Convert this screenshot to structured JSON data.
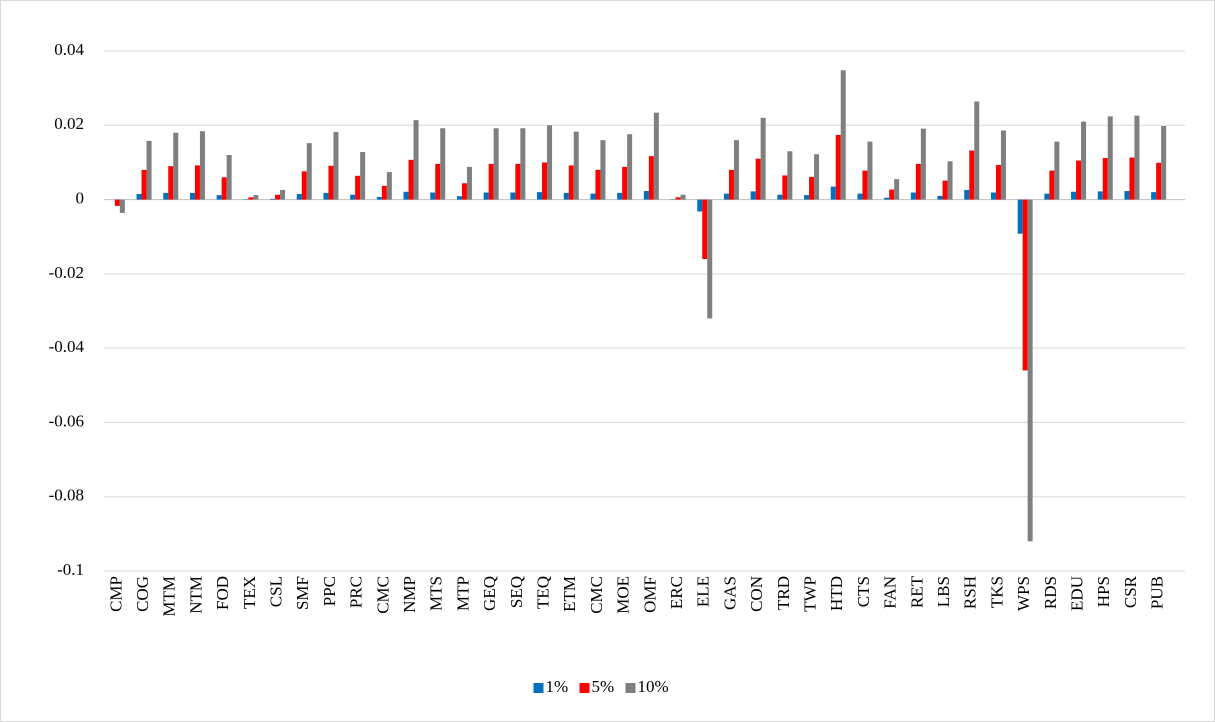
{
  "chart_data": {
    "type": "bar",
    "categories": [
      "CMP",
      "COG",
      "MTM",
      "NTM",
      "FOD",
      "TEX",
      "CSL",
      "SMF",
      "PPC",
      "PRC",
      "CMC",
      "NMP",
      "MTS",
      "MTP",
      "GEQ",
      "SEQ",
      "TEQ",
      "ETM",
      "CMC",
      "MOE",
      "OMF",
      "ERC",
      "ELE",
      "GAS",
      "CON",
      "TRD",
      "TWP",
      "HTD",
      "CTS",
      "FAN",
      "RET",
      "LBS",
      "RSH",
      "TKS",
      "WPS",
      "RDS",
      "EDU",
      "HPS",
      "CSR",
      "PUB"
    ],
    "series": [
      {
        "name": "1%",
        "color": "#0070c0",
        "values": [
          0,
          0.0015,
          0.0018,
          0.0018,
          0.0012,
          0.0001,
          0.0002,
          0.0015,
          0.0018,
          0.0013,
          0.0007,
          0.0021,
          0.0019,
          0.0009,
          0.0019,
          0.0019,
          0.002,
          0.0018,
          0.0016,
          0.0018,
          0.0023,
          0.0001,
          -0.0032,
          0.0016,
          0.0022,
          0.0013,
          0.0012,
          0.0035,
          0.0016,
          0.0005,
          0.0019,
          0.001,
          0.0026,
          0.0019,
          -0.0092,
          0.0016,
          0.0021,
          0.0022,
          0.0023,
          0.002
        ]
      },
      {
        "name": "5%",
        "color": "#ff0000",
        "values": [
          -0.0017,
          0.008,
          0.009,
          0.0092,
          0.006,
          0.0006,
          0.0013,
          0.0076,
          0.0091,
          0.0064,
          0.0037,
          0.0107,
          0.0096,
          0.0044,
          0.0096,
          0.0096,
          0.01,
          0.0092,
          0.008,
          0.0088,
          0.0117,
          0.0006,
          -0.016,
          0.008,
          0.011,
          0.0065,
          0.0061,
          0.0174,
          0.0078,
          0.0027,
          0.0096,
          0.0051,
          0.0132,
          0.0093,
          -0.046,
          0.0078,
          0.0105,
          0.0112,
          0.0113,
          0.0099
        ]
      },
      {
        "name": "10%",
        "color": "#7f7f7f",
        "values": [
          -0.0036,
          0.0158,
          0.018,
          0.0184,
          0.012,
          0.0012,
          0.0026,
          0.0152,
          0.0182,
          0.0128,
          0.0074,
          0.0214,
          0.0192,
          0.0088,
          0.0192,
          0.0192,
          0.02,
          0.0183,
          0.016,
          0.0176,
          0.0234,
          0.0013,
          -0.032,
          0.016,
          0.022,
          0.013,
          0.0122,
          0.0348,
          0.0156,
          0.0055,
          0.0191,
          0.0103,
          0.0264,
          0.0186,
          -0.092,
          0.0156,
          0.021,
          0.0224,
          0.0226,
          0.0198
        ]
      }
    ],
    "ylim": [
      -0.1,
      0.04
    ],
    "yticks": [
      -0.1,
      -0.08,
      -0.06,
      -0.04,
      -0.02,
      0,
      0.02,
      0.04
    ],
    "grid": true,
    "legend": "bottom"
  }
}
